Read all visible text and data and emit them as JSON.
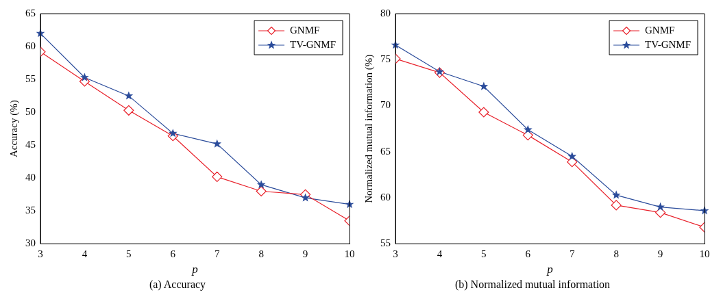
{
  "chart_data": [
    {
      "type": "line",
      "title": "(a) Accuracy",
      "xlabel": "p",
      "ylabel": "Accuracy (%)",
      "x": [
        3,
        4,
        5,
        6,
        7,
        8,
        9,
        10
      ],
      "xlim": [
        3,
        10
      ],
      "xticks": [
        3,
        4,
        5,
        6,
        7,
        8,
        9,
        10
      ],
      "ylim": [
        30,
        65
      ],
      "yticks": [
        30,
        35,
        40,
        45,
        50,
        55,
        60,
        65
      ],
      "grid": false,
      "legend": "top right",
      "series": [
        {
          "name": "GNMF",
          "color": "#e8202a",
          "marker": "diamond",
          "values": [
            59.2,
            54.7,
            50.3,
            46.4,
            40.2,
            38.0,
            37.5,
            33.5
          ]
        },
        {
          "name": "TV-GNMF",
          "color": "#2b4c9b",
          "marker": "star",
          "values": [
            62.0,
            55.3,
            52.5,
            46.8,
            45.2,
            39.0,
            37.0,
            36.0
          ]
        }
      ]
    },
    {
      "type": "line",
      "title": "(b) Normalized mutual information",
      "xlabel": "p",
      "ylabel": "Normalized mutual information (%)",
      "x": [
        3,
        4,
        5,
        6,
        7,
        8,
        9,
        10
      ],
      "xlim": [
        3,
        10
      ],
      "xticks": [
        3,
        4,
        5,
        6,
        7,
        8,
        9,
        10
      ],
      "ylim": [
        55,
        80
      ],
      "yticks": [
        55,
        60,
        65,
        70,
        75,
        80
      ],
      "grid": false,
      "legend": "top right",
      "series": [
        {
          "name": "GNMF",
          "color": "#e8202a",
          "marker": "diamond",
          "values": [
            75.1,
            73.6,
            69.3,
            66.8,
            63.9,
            59.2,
            58.4,
            56.8
          ]
        },
        {
          "name": "TV-GNMF",
          "color": "#2b4c9b",
          "marker": "star",
          "values": [
            76.6,
            73.7,
            72.1,
            67.4,
            64.5,
            60.3,
            59.0,
            58.6
          ]
        }
      ]
    }
  ]
}
